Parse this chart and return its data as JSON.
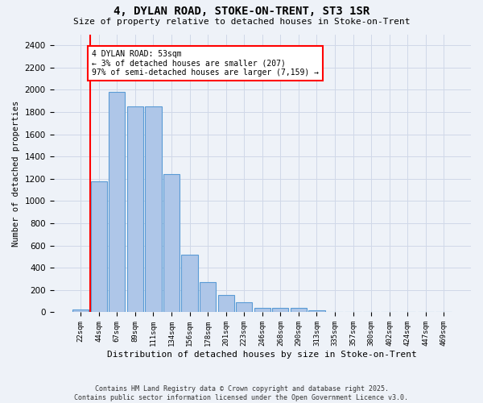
{
  "title1": "4, DYLAN ROAD, STOKE-ON-TRENT, ST3 1SR",
  "title2": "Size of property relative to detached houses in Stoke-on-Trent",
  "xlabel": "Distribution of detached houses by size in Stoke-on-Trent",
  "ylabel": "Number of detached properties",
  "categories": [
    "22sqm",
    "44sqm",
    "67sqm",
    "89sqm",
    "111sqm",
    "134sqm",
    "156sqm",
    "178sqm",
    "201sqm",
    "223sqm",
    "246sqm",
    "268sqm",
    "290sqm",
    "313sqm",
    "335sqm",
    "357sqm",
    "380sqm",
    "402sqm",
    "424sqm",
    "447sqm",
    "469sqm"
  ],
  "values": [
    25,
    1175,
    1980,
    1855,
    1855,
    1240,
    520,
    275,
    155,
    90,
    40,
    42,
    40,
    20,
    5,
    5,
    5,
    5,
    2,
    2,
    2
  ],
  "bar_color": "#aec6e8",
  "bar_edge_color": "#5a9bd5",
  "red_line_x": 0.5,
  "annotation_line1": "4 DYLAN ROAD: 53sqm",
  "annotation_line2": "← 3% of detached houses are smaller (207)",
  "annotation_line3": "97% of semi-detached houses are larger (7,159) →",
  "annotation_box_color": "white",
  "annotation_box_edge": "red",
  "ylim": [
    0,
    2500
  ],
  "yticks": [
    0,
    200,
    400,
    600,
    800,
    1000,
    1200,
    1400,
    1600,
    1800,
    2000,
    2200,
    2400
  ],
  "grid_color": "#d0d8e8",
  "bg_color": "#eef2f8",
  "footer1": "Contains HM Land Registry data © Crown copyright and database right 2025.",
  "footer2": "Contains public sector information licensed under the Open Government Licence v3.0."
}
